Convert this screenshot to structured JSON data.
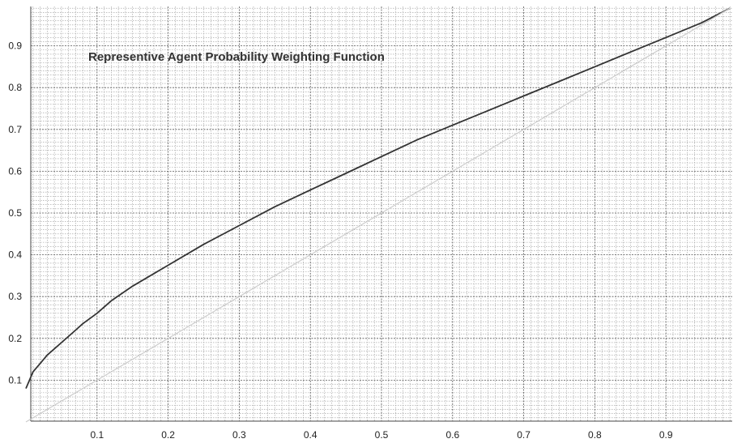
{
  "chart_data": {
    "type": "line",
    "title": "Representive Agent Probability Weighting Function",
    "xlabel": "",
    "ylabel": "",
    "xlim": [
      0.0,
      0.99
    ],
    "ylim": [
      0.0,
      0.99
    ],
    "x_ticks": [
      "0.1",
      "0.2",
      "0.3",
      "0.4",
      "0.5",
      "0.6",
      "0.7",
      "0.8",
      "0.9"
    ],
    "y_ticks": [
      "0.1",
      "0.2",
      "0.3",
      "0.4",
      "0.5",
      "0.6",
      "0.7",
      "0.8",
      "0.9"
    ],
    "grid": true,
    "series": [
      {
        "color": "#333333",
        "x": [
          0.0,
          0.01,
          0.02,
          0.03,
          0.05,
          0.07,
          0.08,
          0.1,
          0.12,
          0.15,
          0.2,
          0.25,
          0.3,
          0.35,
          0.4,
          0.45,
          0.5,
          0.55,
          0.6,
          0.65,
          0.7,
          0.75,
          0.8,
          0.85,
          0.9,
          0.95,
          0.99
        ],
        "y": [
          0.08,
          0.12,
          0.14,
          0.16,
          0.19,
          0.22,
          0.235,
          0.26,
          0.29,
          0.325,
          0.375,
          0.425,
          0.47,
          0.515,
          0.555,
          0.595,
          0.635,
          0.675,
          0.71,
          0.745,
          0.78,
          0.815,
          0.85,
          0.885,
          0.92,
          0.955,
          0.99
        ]
      },
      {
        "color": "#cccccc",
        "x": [
          0.0,
          0.99
        ],
        "y": [
          0.0,
          0.99
        ]
      }
    ]
  }
}
